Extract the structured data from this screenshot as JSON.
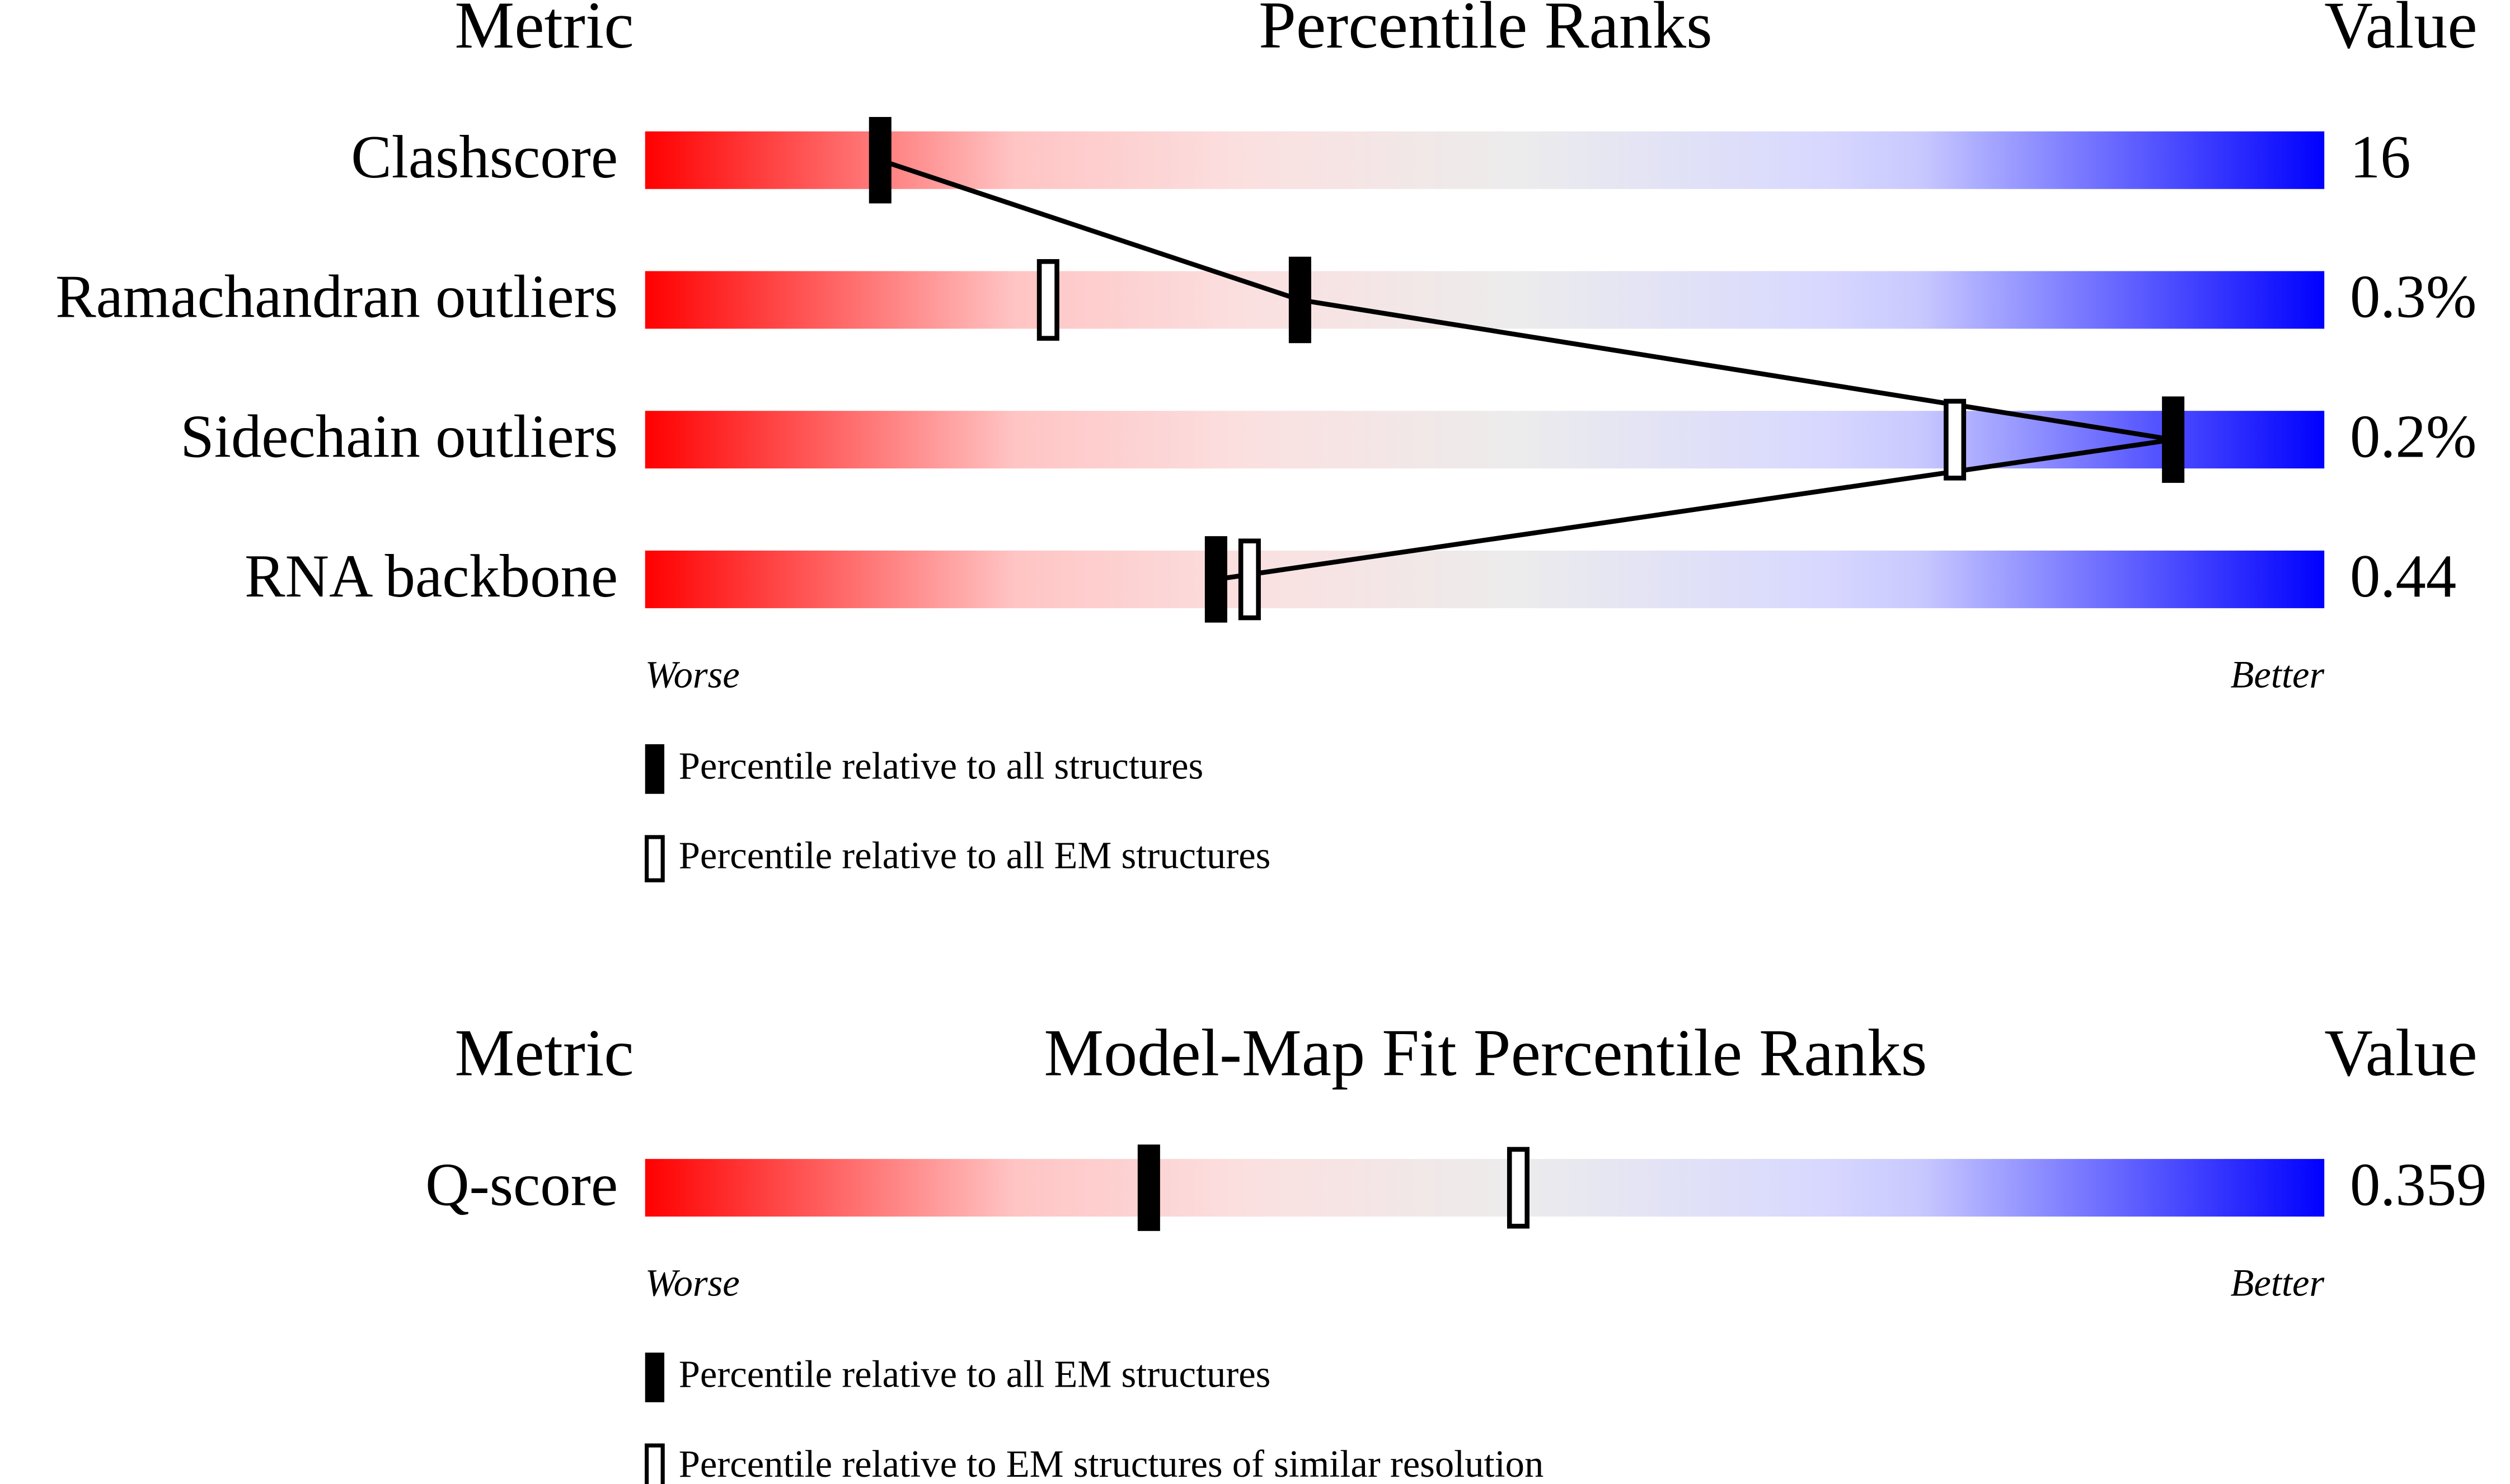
{
  "chart_data": [
    {
      "type": "percentile-slider",
      "metric_header": "Metric",
      "title": "Percentile Ranks",
      "value_header": "Value",
      "categories": [
        "Clashscore",
        "Ramachandran outliers",
        "Sidechain outliers",
        "RNA backbone"
      ],
      "value_texts": [
        "16",
        "0.3%",
        "0.2%",
        "0.44"
      ],
      "series": [
        {
          "name": "Percentile relative to all structures",
          "style": "filled",
          "color": "#000000",
          "values": [
            14,
            39,
            91,
            34
          ]
        },
        {
          "name": "Percentile relative to all EM structures",
          "style": "hollow",
          "color": "#000000",
          "values": [
            null,
            24,
            78,
            36
          ]
        }
      ],
      "connect_series": 0,
      "xlim": [
        0,
        100
      ],
      "worse_label": "Worse",
      "better_label": "Better"
    },
    {
      "type": "percentile-slider",
      "metric_header": "Metric",
      "title": "Model-Map Fit Percentile Ranks",
      "value_header": "Value",
      "categories": [
        "Q-score"
      ],
      "value_texts": [
        "0.359"
      ],
      "series": [
        {
          "name": "Percentile relative to all EM structures",
          "style": "filled",
          "color": "#000000",
          "values": [
            30
          ]
        },
        {
          "name": "Percentile relative to EM structures of similar resolution",
          "style": "hollow",
          "color": "#000000",
          "values": [
            52
          ]
        }
      ],
      "xlim": [
        0,
        100
      ],
      "worse_label": "Worse",
      "better_label": "Better"
    }
  ]
}
